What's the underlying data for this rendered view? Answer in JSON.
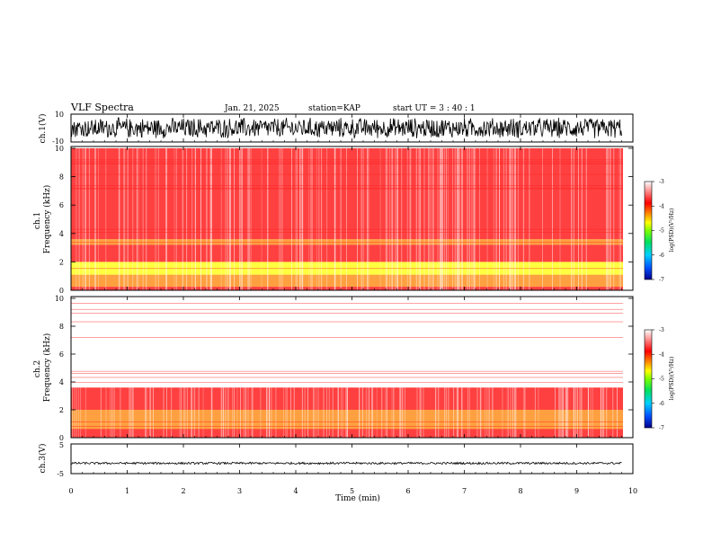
{
  "header": {
    "title": "VLF Spectra",
    "date": "Jan. 21, 2025",
    "station": "station=KAP",
    "start_ut": "start UT =  3 : 40 : 1"
  },
  "chart_data": [
    {
      "panel": "ch.1 waveform",
      "type": "line",
      "ylabel": "ch.1(V)",
      "ylim": [
        -10,
        10
      ],
      "yticks": [
        "10",
        "-10"
      ],
      "xlim": [
        0,
        10
      ],
      "note": "dense noise waveform spanning roughly -8 to +8 V from 0 to 9.8 min"
    },
    {
      "panel": "ch.1 spectrogram",
      "type": "heatmap",
      "ylabel": "ch.1\nFrequency (kHz)",
      "ylim": [
        0,
        10
      ],
      "yticks": [
        "0",
        "2",
        "4",
        "6",
        "8",
        "10"
      ],
      "xlim": [
        0,
        10
      ],
      "bands": [
        {
          "f_khz": 0.0,
          "f_khz_top": 0.25,
          "log_psd": -3.4
        },
        {
          "f_khz": 0.25,
          "f_khz_top": 1.1,
          "log_psd": -3.9
        },
        {
          "f_khz": 1.1,
          "f_khz_top": 2.0,
          "log_psd": -4.7
        },
        {
          "f_khz": 2.0,
          "f_khz_top": 3.2,
          "log_psd": -3.6
        },
        {
          "f_khz": 3.2,
          "f_khz_top": 3.6,
          "log_psd": -4.2
        },
        {
          "f_khz": 3.6,
          "f_khz_top": 10.0,
          "log_psd": -3.5
        }
      ],
      "colorbar": {
        "label": "log(PSD)(V²/Hz)",
        "range": [
          -7,
          -3
        ],
        "ticks": [
          "-3",
          "-4",
          "-5",
          "-6",
          "-7"
        ]
      }
    },
    {
      "panel": "ch.2 spectrogram",
      "type": "heatmap",
      "ylabel": "ch.2\nFrequency (kHz)",
      "ylim": [
        0,
        10
      ],
      "yticks": [
        "0",
        "2",
        "4",
        "6",
        "8",
        "10"
      ],
      "xlim": [
        0,
        10
      ],
      "bands": [
        {
          "f_khz": 0.0,
          "f_khz_top": 0.6,
          "log_psd": -3.6
        },
        {
          "f_khz": 0.6,
          "f_khz_top": 2.0,
          "log_psd": -3.9
        },
        {
          "f_khz": 2.0,
          "f_khz_top": 3.6,
          "log_psd": -3.5
        },
        {
          "f_khz": 3.6,
          "f_khz_top": 10.0,
          "log_psd": -3.1
        }
      ],
      "colorbar": {
        "label": "log(PSD)(V²/Hz)",
        "range": [
          -7,
          -3
        ],
        "ticks": [
          "-3",
          "-4",
          "-5",
          "-6",
          "-7"
        ]
      }
    },
    {
      "panel": "ch.3 waveform",
      "type": "line",
      "ylabel": "ch.3(V)",
      "ylim": [
        -5,
        5
      ],
      "yticks": [
        "5",
        "-5"
      ],
      "xlim": [
        0,
        10
      ],
      "note": "flat signal near -1.5 V with small noise, 0 to 9.8 min"
    }
  ],
  "xaxis": {
    "label": "Time (min)",
    "ticks": [
      "0",
      "1",
      "2",
      "3",
      "4",
      "5",
      "6",
      "7",
      "8",
      "9",
      "10"
    ]
  },
  "colors": {
    "colormap": [
      "#00008c",
      "#0050ff",
      "#00d0ff",
      "#00e060",
      "#80ff00",
      "#ffff00",
      "#ff8000",
      "#ff0000",
      "#ffffff"
    ],
    "ink": "#000000"
  }
}
